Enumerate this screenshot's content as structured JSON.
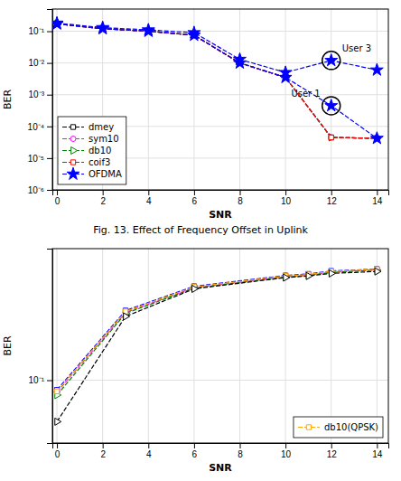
{
  "chart_data": [
    {
      "type": "line",
      "title": "Fig. 13. Effect of Frequency Offset in Uplink",
      "xlabel": "SNR",
      "ylabel": "BER",
      "log": "y",
      "x": [
        0,
        2,
        4,
        6,
        8,
        10,
        12,
        14
      ],
      "xlim": [
        -0.2,
        14.5
      ],
      "ylim": [
        1e-06,
        0.5
      ],
      "xticks": [
        0,
        2,
        4,
        6,
        8,
        10,
        12,
        14
      ],
      "yticks": [
        {
          "value": 1e-06,
          "label": "10⁻⁶"
        },
        {
          "value": 1e-05,
          "label": "10⁻⁵"
        },
        {
          "value": 0.0001,
          "label": "10⁻⁴"
        },
        {
          "value": 0.001,
          "label": "10⁻³"
        },
        {
          "value": 0.01,
          "label": "10⁻²"
        },
        {
          "value": 0.1,
          "label": "10⁻¹"
        }
      ],
      "grid": true,
      "legend": "lower left",
      "line_style": "dashed",
      "series": [
        {
          "name": "dmey",
          "color": "black",
          "marker": "square",
          "values": [
            0.17,
            0.12,
            0.1,
            0.075,
            0.01,
            0.0035,
            4.5e-05,
            4.2e-05
          ]
        },
        {
          "name": "sym10",
          "color": "magenta",
          "marker": "circle",
          "values": [
            0.17,
            0.12,
            0.1,
            0.075,
            0.01,
            0.0035,
            4.5e-05,
            4.2e-05
          ]
        },
        {
          "name": "db10",
          "color": "green",
          "marker": "triangle-right",
          "values": [
            0.17,
            0.12,
            0.1,
            0.075,
            0.01,
            0.0035,
            4.5e-05,
            4.2e-05
          ]
        },
        {
          "name": "coif3",
          "color": "red",
          "marker": "square",
          "values": [
            0.17,
            0.12,
            0.1,
            0.075,
            0.01,
            0.0035,
            4.5e-05,
            4.2e-05
          ]
        },
        {
          "name": "OFDMA",
          "color": "blue",
          "marker": "star",
          "values": [
            0.18,
            0.13,
            0.11,
            0.09,
            0.013,
            0.005,
            0.012,
            0.006
          ]
        },
        {
          "name": "OFDMA",
          "color": "blue",
          "marker": "star",
          "values": [
            0.17,
            0.12,
            0.1,
            0.075,
            0.01,
            0.0035,
            0.00045,
            4.2e-05
          ]
        }
      ],
      "annotations": [
        {
          "text": "User 3",
          "x": 12,
          "y": 0.012
        },
        {
          "text": "User 1",
          "x": 12,
          "y": 0.00045
        }
      ]
    },
    {
      "type": "line",
      "xlabel": "SNR",
      "ylabel": "BER",
      "log": "y",
      "x": [
        0,
        3,
        6,
        10,
        11,
        12,
        14
      ],
      "xlim": [
        -0.2,
        14.5
      ],
      "ylim": [
        0.035,
        0.9
      ],
      "xticks": [
        0,
        2,
        4,
        6,
        8,
        10,
        12,
        14
      ],
      "yticks": [
        {
          "value": 0.1,
          "label": "10⁻¹"
        }
      ],
      "grid": true,
      "legend": "lower right",
      "line_style": "dashed",
      "series": [
        {
          "color": "blue",
          "marker": "square",
          "values": [
            0.085,
            0.32,
            0.48,
            0.575,
            0.59,
            0.62,
            0.64
          ]
        },
        {
          "color": "magenta",
          "marker": "circle",
          "values": [
            0.082,
            0.31,
            0.47,
            0.565,
            0.58,
            0.61,
            0.635
          ]
        },
        {
          "color": "green",
          "marker": "triangle-right",
          "values": [
            0.078,
            0.305,
            0.465,
            0.56,
            0.575,
            0.605,
            0.63
          ]
        },
        {
          "name": "db10(QPSK)",
          "color": "orange",
          "marker": "square",
          "values": [
            0.083,
            0.315,
            0.475,
            0.57,
            0.585,
            0.615,
            0.638
          ]
        },
        {
          "color": "black",
          "marker": "triangle-right",
          "values": [
            0.05,
            0.29,
            0.46,
            0.555,
            0.57,
            0.595,
            0.615
          ]
        }
      ]
    }
  ]
}
